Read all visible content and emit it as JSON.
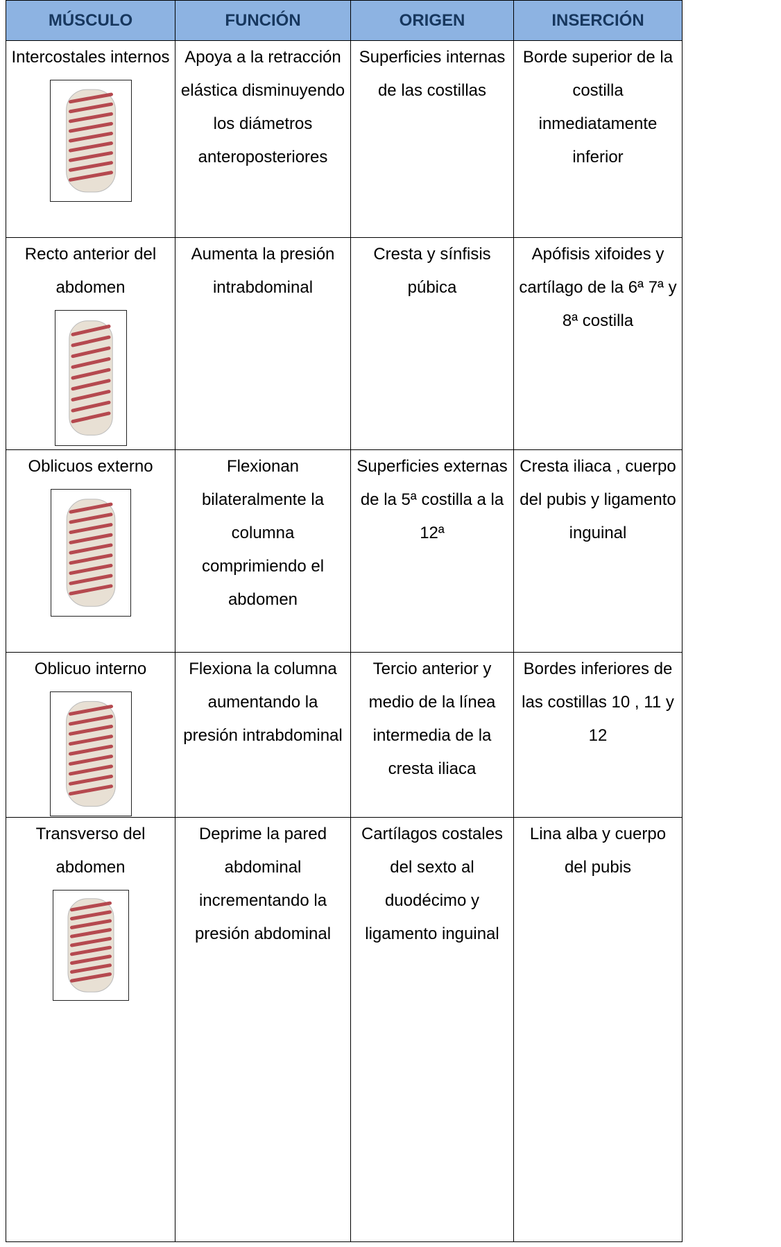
{
  "table": {
    "header": [
      "MÚSCULO",
      "FUNCIÓN",
      "ORIGEN",
      "INSERCIÓN"
    ],
    "rows": [
      [
        "Intercostales internos",
        "Apoya a la retracción elástica disminuyendo los diámetros anteroposteriores",
        "Superficies internas de las costillas",
        "Borde superior de la costilla inmediatamente inferior"
      ],
      [
        "Recto anterior del abdomen",
        "Aumenta la presión intrabdominal",
        "Cresta y sínfisis púbica",
        "Apófisis xifoides y cartílago de la 6ª 7ª y 8ª costilla"
      ],
      [
        "Oblicuos externo",
        "Flexionan bilateralmente la columna comprimiendo el abdomen",
        "Superficies externas de la 5ª costilla a la 12ª",
        "Cresta iliaca , cuerpo del pubis y ligamento inguinal"
      ],
      [
        "Oblicuo interno",
        "Flexiona la columna aumentando la presión intrabdominal",
        "Tercio anterior y medio de la línea intermedia de la cresta iliaca",
        "Bordes inferiores de las costillas 10 , 11 y 12"
      ],
      [
        "Transverso del abdomen",
        "Deprime la pared abdominal incrementando la presión abdominal",
        "Cartílagos costales del sexto al duodécimo y ligamento inguinal",
        "Lina alba y cuerpo del pubis"
      ]
    ]
  }
}
